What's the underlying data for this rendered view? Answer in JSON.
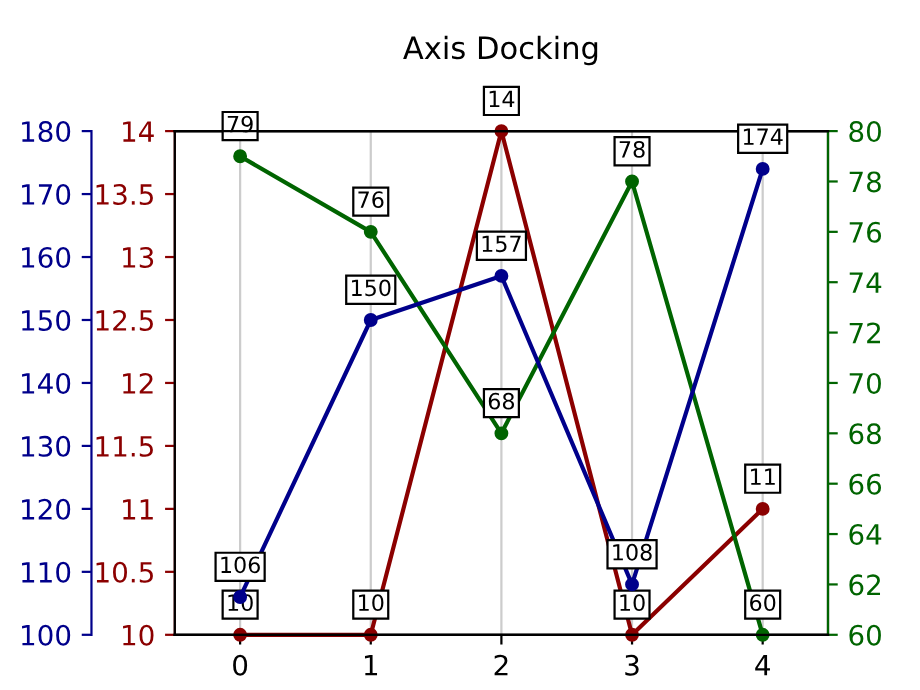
{
  "chart_data": {
    "type": "line",
    "title": "Axis Docking",
    "categories": [
      "0",
      "1",
      "2",
      "3",
      "4"
    ],
    "series": [
      {
        "color": "#00008b",
        "values": [
          106,
          150,
          157,
          108,
          174
        ],
        "axis": "y3"
      },
      {
        "color": "#8b0000",
        "values": [
          10,
          10,
          14,
          10,
          11
        ],
        "axis": "y"
      },
      {
        "color": "#006400",
        "values": [
          79,
          76,
          68,
          78,
          60
        ],
        "axis": "y2"
      }
    ],
    "ylim": [
      10,
      14
    ],
    "yticks": [
      10,
      10.5,
      11,
      11.5,
      12,
      12.5,
      13,
      13.5,
      14
    ],
    "y2lim": [
      60,
      80
    ],
    "y2ticks": [
      60,
      62,
      64,
      66,
      68,
      70,
      72,
      74,
      76,
      78,
      80
    ],
    "y3lim": [
      100,
      180
    ],
    "y3ticks": [
      100,
      110,
      120,
      130,
      140,
      150,
      160,
      170,
      180
    ],
    "grid": "x",
    "marker": "circle",
    "line_style": "solid",
    "data_labels": true
  }
}
